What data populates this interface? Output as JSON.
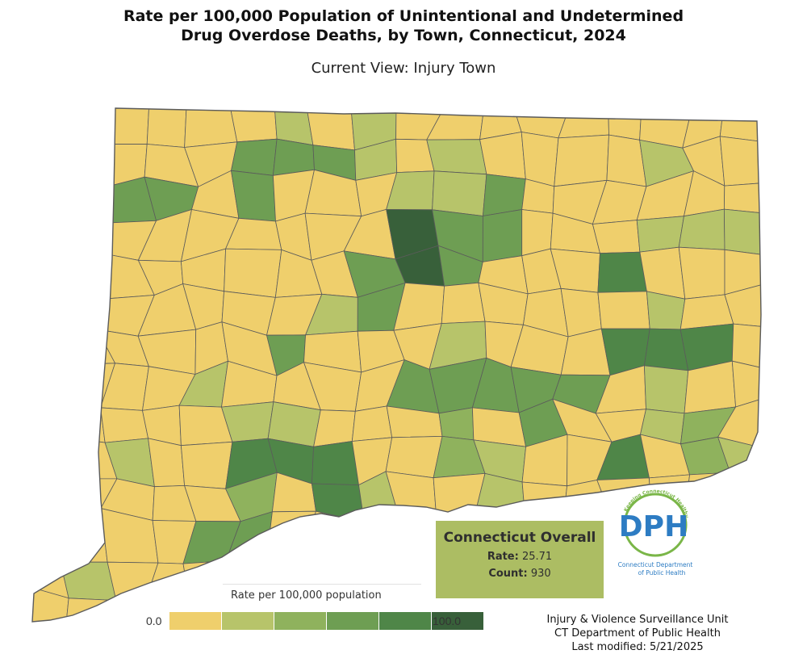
{
  "title": {
    "line1": "Rate per 100,000 Population of Unintentional and Undetermined",
    "line2": "Drug Overdose Deaths, by Town, Connecticut, 2024"
  },
  "subtitle": "Current View: Injury Town",
  "colors": {
    "background": "#ffffff",
    "border": "#5b5b5b",
    "scale": [
      "#efcf6c",
      "#b7c46a",
      "#8fb25d",
      "#6e9e53",
      "#4f8648",
      "#38603a"
    ],
    "overall_box": "#acbd63",
    "logo_blue": "#2d7cc3",
    "logo_green": "#7ab648"
  },
  "legend": {
    "title": "Rate per 100,000 population",
    "min": "0.0",
    "max": "100.0",
    "bins": [
      {
        "color": "#efcf6c"
      },
      {
        "color": "#b7c46a"
      },
      {
        "color": "#8fb25d"
      },
      {
        "color": "#6e9e53"
      },
      {
        "color": "#4f8648"
      },
      {
        "color": "#38603a"
      }
    ]
  },
  "overall": {
    "title": "Connecticut Overall",
    "rate_label": "Rate:",
    "rate_value": "25.71",
    "count_label": "Count:",
    "count_value": "930"
  },
  "logo": {
    "initials": "DPH",
    "arc_text": "Keeping Connecticut Healthy",
    "org_line1": "Connecticut Department",
    "org_line2": "of Public Health"
  },
  "credits": {
    "line1": "Injury & Violence Surveillance Unit",
    "line2": "CT Department of Public Health",
    "line3": "Last modified: 5/21/2025"
  }
}
